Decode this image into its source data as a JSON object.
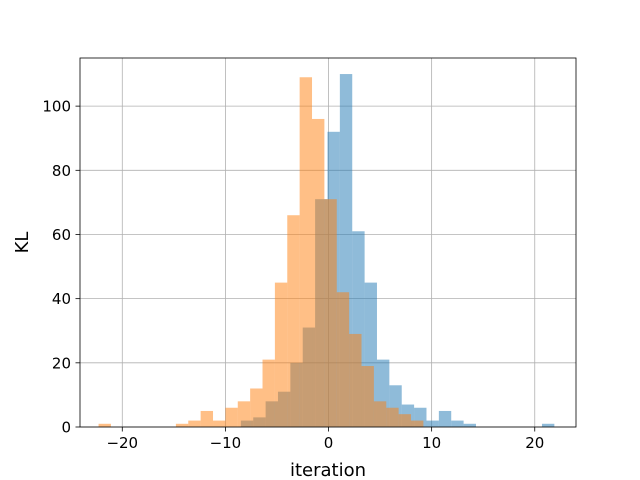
{
  "chart_data": {
    "type": "histogram",
    "xlabel": "iteration",
    "ylabel": "KL",
    "xlim": [
      -24.1,
      24.0
    ],
    "ylim": [
      0,
      115
    ],
    "xticks": [
      -20,
      -10,
      0,
      10,
      20
    ],
    "yticks": [
      0,
      20,
      40,
      60,
      80,
      100
    ],
    "xtick_labels": [
      "−20",
      "−10",
      "0",
      "10",
      "20"
    ],
    "ytick_labels": [
      "0",
      "20",
      "40",
      "60",
      "80",
      "100"
    ],
    "grid": true,
    "legend": false,
    "series": [
      {
        "color": "#1f77b4",
        "alpha": 0.5,
        "bins": [
          {
            "x0": -8.5,
            "x1": -7.3,
            "count": 2
          },
          {
            "x0": -7.3,
            "x1": -6.1,
            "count": 3
          },
          {
            "x0": -6.1,
            "x1": -4.9,
            "count": 8
          },
          {
            "x0": -4.9,
            "x1": -3.7,
            "count": 11
          },
          {
            "x0": -3.7,
            "x1": -2.5,
            "count": 20
          },
          {
            "x0": -2.5,
            "x1": -1.3,
            "count": 31
          },
          {
            "x0": -1.3,
            "x1": -0.1,
            "count": 71
          },
          {
            "x0": -0.1,
            "x1": 1.1,
            "count": 92
          },
          {
            "x0": 1.1,
            "x1": 2.3,
            "count": 110
          },
          {
            "x0": 2.3,
            "x1": 3.5,
            "count": 61
          },
          {
            "x0": 3.5,
            "x1": 4.7,
            "count": 45
          },
          {
            "x0": 4.7,
            "x1": 5.9,
            "count": 21
          },
          {
            "x0": 5.9,
            "x1": 7.1,
            "count": 13
          },
          {
            "x0": 7.1,
            "x1": 8.3,
            "count": 7
          },
          {
            "x0": 8.3,
            "x1": 9.5,
            "count": 6
          },
          {
            "x0": 9.5,
            "x1": 10.7,
            "count": 2
          },
          {
            "x0": 10.7,
            "x1": 11.9,
            "count": 5
          },
          {
            "x0": 11.9,
            "x1": 13.1,
            "count": 2
          },
          {
            "x0": 13.1,
            "x1": 14.3,
            "count": 1
          },
          {
            "x0": 20.7,
            "x1": 21.9,
            "count": 1
          }
        ]
      },
      {
        "color": "#ff7f0e",
        "alpha": 0.5,
        "bins": [
          {
            "x0": -22.3,
            "x1": -21.1,
            "count": 1
          },
          {
            "x0": -14.8,
            "x1": -13.6,
            "count": 1
          },
          {
            "x0": -13.6,
            "x1": -12.4,
            "count": 2
          },
          {
            "x0": -12.4,
            "x1": -11.2,
            "count": 5
          },
          {
            "x0": -11.2,
            "x1": -10.0,
            "count": 2
          },
          {
            "x0": -10.0,
            "x1": -8.8,
            "count": 6
          },
          {
            "x0": -8.8,
            "x1": -7.6,
            "count": 8
          },
          {
            "x0": -7.6,
            "x1": -6.4,
            "count": 12
          },
          {
            "x0": -6.4,
            "x1": -5.2,
            "count": 21
          },
          {
            "x0": -5.2,
            "x1": -4.0,
            "count": 45
          },
          {
            "x0": -4.0,
            "x1": -2.8,
            "count": 66
          },
          {
            "x0": -2.8,
            "x1": -1.6,
            "count": 109
          },
          {
            "x0": -1.6,
            "x1": -0.4,
            "count": 96
          },
          {
            "x0": -0.4,
            "x1": 0.8,
            "count": 71
          },
          {
            "x0": 0.8,
            "x1": 2.0,
            "count": 42
          },
          {
            "x0": 2.0,
            "x1": 3.2,
            "count": 29
          },
          {
            "x0": 3.2,
            "x1": 4.4,
            "count": 19
          },
          {
            "x0": 4.4,
            "x1": 5.6,
            "count": 8
          },
          {
            "x0": 5.6,
            "x1": 6.8,
            "count": 6
          },
          {
            "x0": 6.8,
            "x1": 8.0,
            "count": 4
          },
          {
            "x0": 8.0,
            "x1": 9.2,
            "count": 2
          }
        ]
      }
    ]
  }
}
